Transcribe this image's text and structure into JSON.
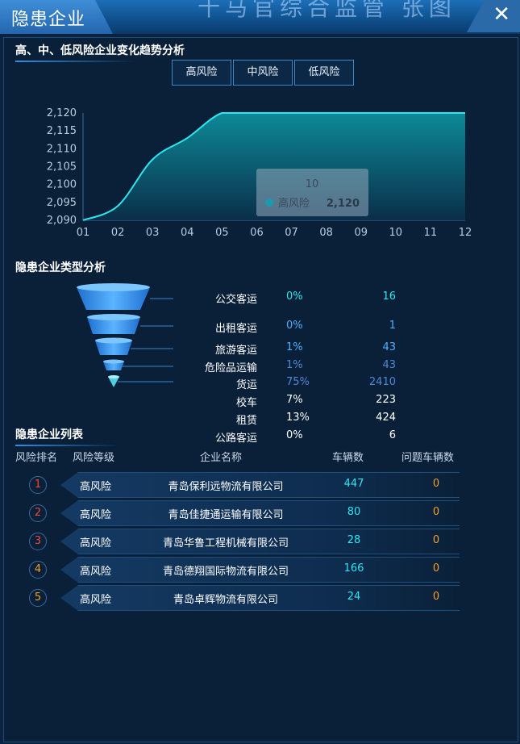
{
  "header": {
    "title": "隐患企业",
    "banner_text": "十马官综合监管  张图",
    "close_label": "✕"
  },
  "trend": {
    "section_title": "高、中、低风险企业变化趋势分析",
    "tabs": [
      "高风险",
      "中风险",
      "低风险"
    ]
  },
  "chart_data": {
    "type": "area",
    "x": [
      "01",
      "02",
      "03",
      "04",
      "05",
      "06",
      "07",
      "08",
      "09",
      "10",
      "11",
      "12"
    ],
    "series": [
      {
        "name": "高风险",
        "values": [
          2090,
          2094,
          2107,
          2113,
          2120,
          2120,
          2120,
          2120,
          2120,
          2120,
          2120,
          2120
        ]
      }
    ],
    "ylim": [
      2090,
      2120
    ],
    "yticks": [
      "2,120",
      "2,115",
      "2,110",
      "2,105",
      "2,100",
      "2,095",
      "2,090"
    ],
    "tooltip": {
      "x": "10",
      "series": "高风险",
      "value": "2,120"
    },
    "colors": {
      "line": "#2ee6f0",
      "fill_top": "#0d8f9c",
      "fill_bottom": "#0a2f4a"
    }
  },
  "types": {
    "section_title": "隐患企业类型分析",
    "rows": [
      {
        "name": "公交客运",
        "percent": "0%",
        "count": "16"
      },
      {
        "name": "出租客运",
        "percent": "0%",
        "count": "1"
      },
      {
        "name": "旅游客运",
        "percent": "1%",
        "count": "43"
      },
      {
        "name": "危险品运输",
        "percent": "1%",
        "count": "43"
      },
      {
        "name": "货运",
        "percent": "75%",
        "count": "2410"
      },
      {
        "name": "校车",
        "percent": "7%",
        "count": "223"
      },
      {
        "name": "租赁",
        "percent": "13%",
        "count": "424"
      },
      {
        "name": "公路客运",
        "percent": "0%",
        "count": "6"
      }
    ]
  },
  "enterprises": {
    "section_title": "隐患企业列表",
    "headers": [
      "风险排名",
      "风险等级",
      "企业名称",
      "车辆数",
      "问题车辆数"
    ],
    "rows": [
      {
        "rank": "1",
        "level": "高风险",
        "name": "青岛保利远物流有限公司",
        "vehicles": "447",
        "problem": "0"
      },
      {
        "rank": "2",
        "level": "高风险",
        "name": "青岛佳捷通运输有限公司",
        "vehicles": "80",
        "problem": "0"
      },
      {
        "rank": "3",
        "level": "高风险",
        "name": "青岛华鲁工程机械有限公司",
        "vehicles": "28",
        "problem": "0"
      },
      {
        "rank": "4",
        "level": "高风险",
        "name": "青岛德翔国际物流有限公司",
        "vehicles": "166",
        "problem": "0"
      },
      {
        "rank": "5",
        "level": "高风险",
        "name": "青岛卓辉物流有限公司",
        "vehicles": "24",
        "problem": "0"
      }
    ],
    "rank_colors": [
      "#e84b3c",
      "#e84b3c",
      "#e84b3c",
      "#f0a030",
      "#f0a030"
    ]
  }
}
